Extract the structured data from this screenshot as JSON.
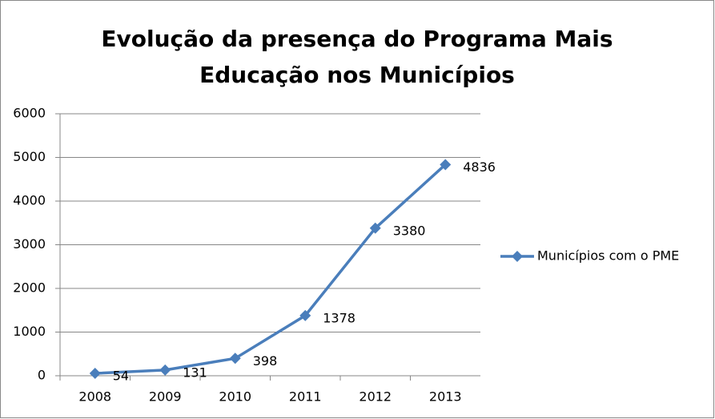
{
  "chart_data": {
    "type": "line",
    "title": "Evolução da presença do Programa Mais Educação nos Municípios",
    "categories": [
      "2008",
      "2009",
      "2010",
      "2011",
      "2012",
      "2013"
    ],
    "series": [
      {
        "name": "Municípios com o PME",
        "color": "#4a7ebb",
        "values": [
          54,
          131,
          398,
          1378,
          3380,
          4836
        ]
      }
    ],
    "ylim": [
      0,
      6000
    ],
    "yticks": [
      0,
      1000,
      2000,
      3000,
      4000,
      5000,
      6000
    ],
    "grid": true,
    "legend": "right"
  }
}
